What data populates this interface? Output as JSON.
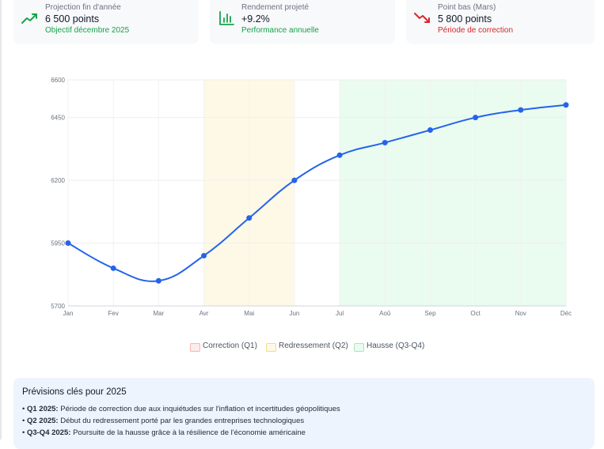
{
  "cards": [
    {
      "label": "Projection fin d'année",
      "value": "6 500 points",
      "note": "Objectif décembre 2025",
      "icon": "trending-up-icon",
      "color": "#16a34a"
    },
    {
      "label": "Rendement projeté",
      "value": "+9.2%",
      "note": "Performance annuelle",
      "icon": "bar-chart-icon",
      "color": "#16a34a"
    },
    {
      "label": "Point bas (Mars)",
      "value": "5 800 points",
      "note": "Période de correction",
      "icon": "trending-down-icon",
      "color": "#dc2626"
    }
  ],
  "chart_data": {
    "type": "line",
    "categories": [
      "Jan",
      "Fev",
      "Mar",
      "Avr",
      "Mai",
      "Jun",
      "Jul",
      "Aoû",
      "Sep",
      "Oct",
      "Nov",
      "Déc"
    ],
    "series": [
      {
        "values": [
          5950,
          5850,
          5800,
          5900,
          6050,
          6200,
          6300,
          6350,
          6400,
          6450,
          6480,
          6500
        ]
      }
    ],
    "ylim": [
      5700,
      6600
    ],
    "yticks": [
      5700,
      5950,
      6200,
      6450,
      6600
    ],
    "grid": true,
    "line_color": "#2563eb",
    "regions": [
      {
        "name": "Correction (Q1)",
        "start": "Jan",
        "end": "Mar",
        "fill": "#fdecec",
        "border": "#f5b5b5",
        "visible": false
      },
      {
        "name": "Redressement (Q2)",
        "start": "Avr",
        "end": "Jun",
        "fill": "#fef9e6",
        "border": "#f3dc8a",
        "visible": true
      },
      {
        "name": "Hausse (Q3-Q4)",
        "start": "Jul",
        "end": "Déc",
        "fill": "#eafbf0",
        "border": "#a7e8bd",
        "visible": true
      }
    ]
  },
  "key": {
    "title": "Prévisions clés pour 2025",
    "items": [
      {
        "label": "Q1 2025:",
        "text": "Période de correction due aux inquiétudes sur l'inflation et incertitudes géopolitiques"
      },
      {
        "label": "Q2 2025:",
        "text": "Début du redressement porté par les grandes entreprises technologiques"
      },
      {
        "label": "Q3-Q4 2025:",
        "text": "Poursuite de la hausse grâce à la résilience de l'économie américaine"
      }
    ]
  }
}
